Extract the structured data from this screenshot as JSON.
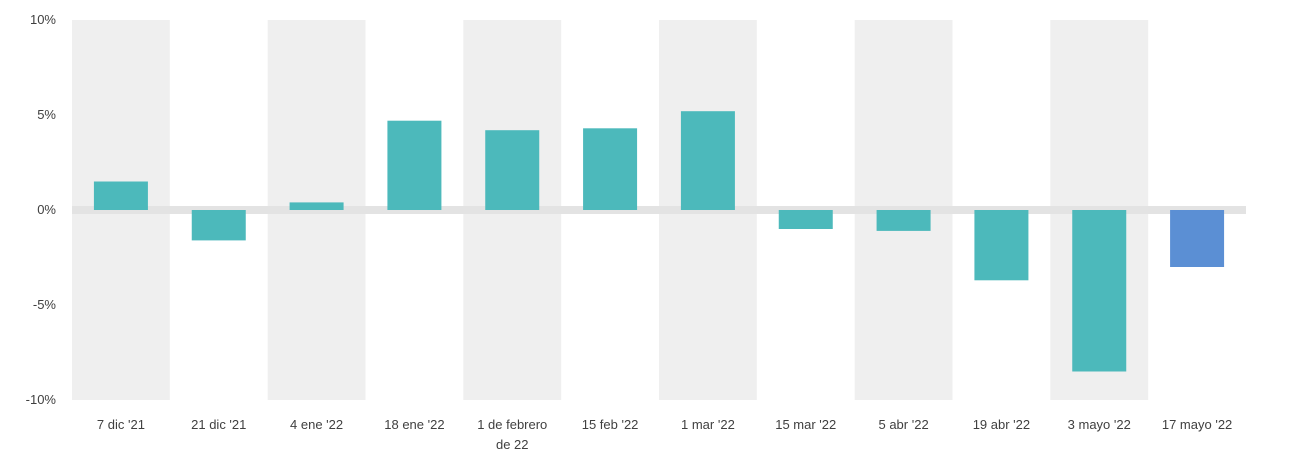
{
  "chart_data": {
    "type": "bar",
    "categories": [
      "7 dic '21",
      "21 dic '21",
      "4 ene '22",
      "18 ene '22",
      "1 de febrero de 22",
      "15 feb '22",
      "1 mar '22",
      "15 mar '22",
      "5 abr '22",
      "19 abr '22",
      "3 mayo '22",
      "17 mayo '22"
    ],
    "values": [
      1.5,
      -1.6,
      0.4,
      4.7,
      4.2,
      4.3,
      5.2,
      -1.0,
      -1.1,
      -3.7,
      -8.5,
      -3.0
    ],
    "ylim": [
      -10,
      10
    ],
    "yticks": [
      10,
      5,
      0,
      -5,
      -10
    ],
    "ytick_labels": [
      "10%",
      "5%",
      "0%",
      "-5%",
      "-10%"
    ],
    "grid": true,
    "colors": {
      "bar": "#4cb9bb",
      "highlight_bar": "#5b8fd4",
      "band": "#efefef",
      "zero_line": "#e3e3e3",
      "text": "#404040"
    },
    "highlight_index": 11
  }
}
